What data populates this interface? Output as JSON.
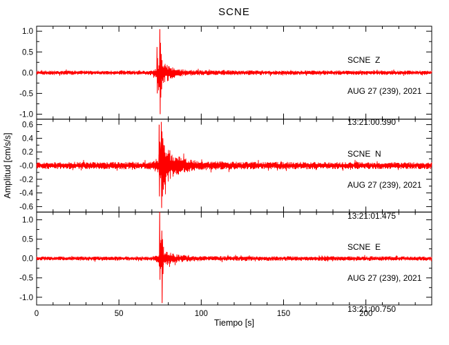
{
  "title": "SCNE",
  "chart_data": {
    "type": "line",
    "subtype": "seismogram-3-component",
    "title": "SCNE",
    "xlabel": "Tiempo [s]",
    "ylabel": "Amplitud [cm/s/s]",
    "trace_color": "#ff0000",
    "axis_color": "#000000",
    "grid": false,
    "x": {
      "min": 0,
      "max": 240,
      "major_ticks": [
        0,
        50,
        100,
        150,
        200
      ],
      "tick_labels": [
        "0",
        "50",
        "100",
        "150",
        "200"
      ],
      "minor_step": 10
    },
    "panels": [
      {
        "component": "Z",
        "station_label": "SCNE  Z",
        "date": "AUG 27 (239), 2021",
        "time": "13:21:00.390",
        "ylim": 1.12,
        "ytick_values": [
          1.0,
          0.5,
          0.0,
          -0.5,
          -1.0
        ],
        "ytick_labels": [
          "1.0",
          "0.5",
          "0.0",
          "-0.5",
          "-1.0"
        ],
        "y_minor_step": 0.25,
        "seed": 7,
        "noise_envelope": [
          [
            0,
            0.05
          ],
          [
            68,
            0.05
          ],
          [
            73,
            0.12
          ],
          [
            74,
            0.3
          ],
          [
            75,
            0.45
          ],
          [
            76,
            0.35
          ],
          [
            78,
            0.25
          ],
          [
            80,
            0.2
          ],
          [
            83,
            0.14
          ],
          [
            86,
            0.1
          ],
          [
            90,
            0.08
          ],
          [
            95,
            0.07
          ],
          [
            100,
            0.06
          ],
          [
            130,
            0.055
          ],
          [
            240,
            0.05
          ]
        ],
        "spikes": [
          [
            73.0,
            0.0
          ],
          [
            73.15,
            0.62
          ],
          [
            73.3,
            -0.5
          ],
          [
            73.45,
            0.35
          ],
          [
            73.6,
            -0.25
          ],
          [
            74.7,
            0.0
          ],
          [
            74.85,
            1.05
          ],
          [
            75.05,
            -1.0
          ],
          [
            75.25,
            0.72
          ],
          [
            75.45,
            -0.6
          ],
          [
            75.7,
            0.45
          ],
          [
            75.95,
            -0.4
          ],
          [
            76.2,
            0.3
          ]
        ]
      },
      {
        "component": "N",
        "station_label": "SCNE  N",
        "date": "AUG 27 (239), 2021",
        "time": "13:21:01.475",
        "ylim": 0.68,
        "ytick_values": [
          0.6,
          0.4,
          0.2,
          -0.0,
          -0.2,
          -0.4,
          -0.6
        ],
        "ytick_labels": [
          "0.6",
          "0.4",
          "0.2",
          "-0.0",
          "-0.2",
          "-0.4",
          "-0.6"
        ],
        "y_minor_step": 0.1,
        "seed": 13,
        "noise_envelope": [
          [
            0,
            0.05
          ],
          [
            70,
            0.055
          ],
          [
            74,
            0.12
          ],
          [
            75,
            0.35
          ],
          [
            76,
            0.45
          ],
          [
            77,
            0.38
          ],
          [
            79,
            0.3
          ],
          [
            81,
            0.24
          ],
          [
            84,
            0.17
          ],
          [
            88,
            0.12
          ],
          [
            93,
            0.09
          ],
          [
            100,
            0.07
          ],
          [
            110,
            0.062
          ],
          [
            130,
            0.055
          ],
          [
            240,
            0.05
          ]
        ],
        "spikes": [
          [
            74.3,
            0.0
          ],
          [
            74.45,
            0.6
          ],
          [
            74.6,
            -0.45
          ],
          [
            74.8,
            0.35
          ],
          [
            75.6,
            0.0
          ],
          [
            75.75,
            0.64
          ],
          [
            75.95,
            -0.62
          ],
          [
            76.15,
            0.5
          ],
          [
            76.4,
            -0.45
          ],
          [
            76.7,
            0.4
          ],
          [
            77.0,
            -0.35
          ],
          [
            77.3,
            0.3
          ]
        ]
      },
      {
        "component": "E",
        "station_label": "SCNE  E",
        "date": "AUG 27 (239), 2021",
        "time": "13:21:00.750",
        "ylim": 1.2,
        "ytick_values": [
          1.0,
          0.5,
          0.0,
          -0.5,
          -1.0
        ],
        "ytick_labels": [
          "1.0",
          "0.5",
          "0.0",
          "-0.5",
          "-1.0"
        ],
        "y_minor_step": 0.25,
        "seed": 21,
        "noise_envelope": [
          [
            0,
            0.05
          ],
          [
            70,
            0.055
          ],
          [
            74,
            0.12
          ],
          [
            75,
            0.4
          ],
          [
            76,
            0.35
          ],
          [
            78,
            0.22
          ],
          [
            80,
            0.17
          ],
          [
            83,
            0.13
          ],
          [
            87,
            0.1
          ],
          [
            92,
            0.08
          ],
          [
            100,
            0.065
          ],
          [
            130,
            0.06
          ],
          [
            240,
            0.055
          ]
        ],
        "spikes": [
          [
            74.6,
            0.0
          ],
          [
            74.75,
            1.2
          ],
          [
            74.95,
            -0.55
          ],
          [
            75.15,
            0.4
          ],
          [
            75.9,
            0.0
          ],
          [
            76.05,
            0.72
          ],
          [
            76.25,
            -1.15
          ],
          [
            76.5,
            0.5
          ],
          [
            76.8,
            -0.4
          ],
          [
            77.1,
            0.3
          ]
        ]
      }
    ]
  }
}
